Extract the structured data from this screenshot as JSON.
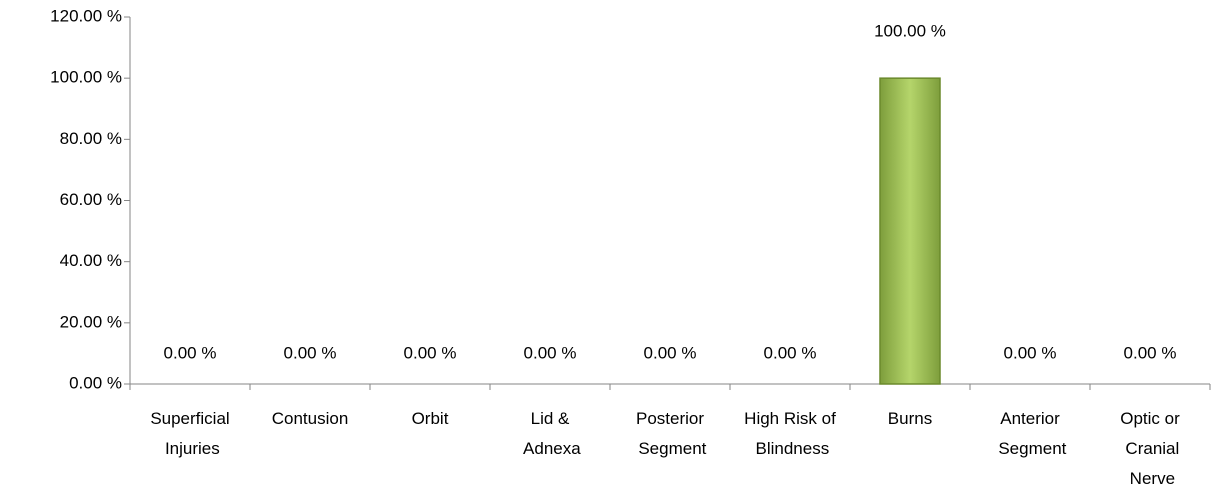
{
  "chart_data": {
    "type": "bar",
    "categories": [
      "Superficial Injuries",
      "Contusion",
      "Orbit",
      "Lid & Adnexa",
      "Posterior Segment",
      "High Risk of Blindness",
      "Burns",
      "Anterior Segment",
      "Optic or Cranial Nerve"
    ],
    "values": [
      0,
      0,
      0,
      0,
      0,
      0,
      100,
      0,
      0
    ],
    "value_labels": [
      "0.00 %",
      "0.00 %",
      "0.00 %",
      "0.00 %",
      "0.00 %",
      "0.00 %",
      "100.00 %",
      "0.00 %",
      "0.00 %"
    ],
    "color": "#9bbb59",
    "ylim": [
      0,
      120
    ],
    "yticks": [
      {
        "value": 0,
        "label": "0.00 %"
      },
      {
        "value": 20,
        "label": "20.00 %"
      },
      {
        "value": 40,
        "label": "40.00 %"
      },
      {
        "value": 60,
        "label": "60.00 %"
      },
      {
        "value": 80,
        "label": "80.00 %"
      },
      {
        "value": 100,
        "label": "100.00 %"
      },
      {
        "value": 120,
        "label": "120.00 %"
      }
    ],
    "grid": false
  }
}
